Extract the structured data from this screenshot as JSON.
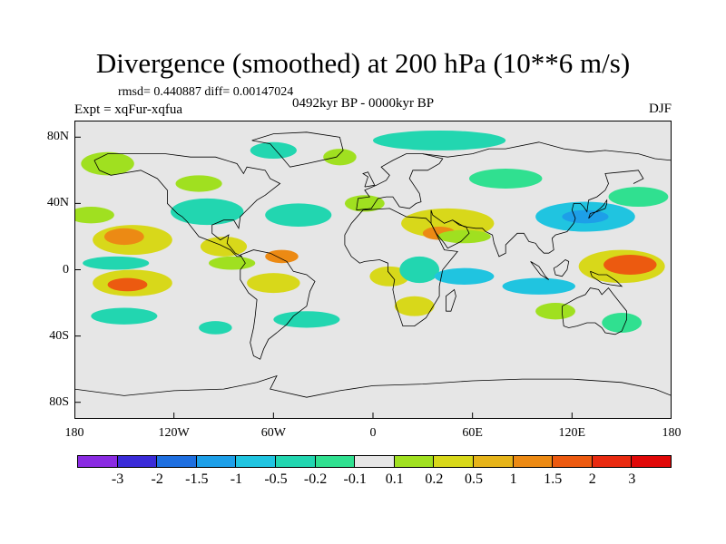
{
  "title": "Divergence (smoothed) at 200 hPa (10**6 m/s)",
  "stats": "rmsd= 0.440887  diff= 0.00147024",
  "experiment": "Expt = xqFur-xqfua",
  "period": "0492kyr BP - 0000kyr BP",
  "season": "DJF",
  "lat_labels": [
    "80N",
    "40N",
    "0",
    "40S",
    "80S"
  ],
  "lat_values": [
    80,
    40,
    0,
    -40,
    -80
  ],
  "lon_labels": [
    "180",
    "120W",
    "60W",
    "0",
    "60E",
    "120E",
    "180"
  ],
  "lon_values": [
    -180,
    -120,
    -60,
    0,
    60,
    120,
    180
  ],
  "colorbar": {
    "labels": [
      "-3",
      "-2",
      "-1.5",
      "-1",
      "-0.5",
      "-0.2",
      "-0.1",
      "0.1",
      "0.2",
      "0.5",
      "1",
      "1.5",
      "2",
      "3"
    ],
    "colors": [
      "#8a2be2",
      "#3a2bd8",
      "#1e6fe0",
      "#1d9fe8",
      "#20c4e0",
      "#22d6b0",
      "#30e090",
      "#e6e6e6",
      "#a0e020",
      "#d8d81a",
      "#e6b41a",
      "#ec8a14",
      "#ec5a10",
      "#e82a10",
      "#e00808"
    ]
  },
  "map_colors": {
    "background": "#e6e6e6",
    "coast": "#000000"
  },
  "field_blobs": [
    {
      "lon": -145,
      "lat": 18,
      "rx": 24,
      "ry": 9,
      "level": "0.5",
      "color": "#d8d81a"
    },
    {
      "lon": -150,
      "lat": 20,
      "rx": 12,
      "ry": 5,
      "level": "1",
      "color": "#ec8a14"
    },
    {
      "lon": -90,
      "lat": 14,
      "rx": 14,
      "ry": 6,
      "level": "0.5",
      "color": "#d8d81a"
    },
    {
      "lon": -145,
      "lat": -8,
      "rx": 24,
      "ry": 8,
      "level": "0.5",
      "color": "#d8d81a"
    },
    {
      "lon": -148,
      "lat": -9,
      "rx": 12,
      "ry": 4,
      "level": "1.5",
      "color": "#ec5a10"
    },
    {
      "lon": -85,
      "lat": 4,
      "rx": 14,
      "ry": 4,
      "level": "0.2",
      "color": "#a0e020"
    },
    {
      "lon": -60,
      "lat": -8,
      "rx": 16,
      "ry": 6,
      "level": "0.5",
      "color": "#d8d81a"
    },
    {
      "lon": -55,
      "lat": 8,
      "rx": 10,
      "ry": 4,
      "level": "1",
      "color": "#ec8a14"
    },
    {
      "lon": -170,
      "lat": 33,
      "rx": 14,
      "ry": 5,
      "level": "0.2",
      "color": "#a0e020"
    },
    {
      "lon": 45,
      "lat": 28,
      "rx": 28,
      "ry": 9,
      "level": "0.5",
      "color": "#d8d81a"
    },
    {
      "lon": 40,
      "lat": 22,
      "rx": 10,
      "ry": 4,
      "level": "1",
      "color": "#ec8a14"
    },
    {
      "lon": 10,
      "lat": -4,
      "rx": 12,
      "ry": 6,
      "level": "0.5",
      "color": "#d8d81a"
    },
    {
      "lon": 25,
      "lat": -22,
      "rx": 12,
      "ry": 6,
      "level": "0.5",
      "color": "#d8d81a"
    },
    {
      "lon": 55,
      "lat": 20,
      "rx": 16,
      "ry": 4,
      "level": "0.2",
      "color": "#a0e020"
    },
    {
      "lon": 150,
      "lat": 2,
      "rx": 26,
      "ry": 10,
      "level": "0.5",
      "color": "#d8d81a"
    },
    {
      "lon": 155,
      "lat": 3,
      "rx": 16,
      "ry": 6,
      "level": "1.5",
      "color": "#ec5a10"
    },
    {
      "lon": 110,
      "lat": -25,
      "rx": 12,
      "ry": 5,
      "level": "0.2",
      "color": "#a0e020"
    },
    {
      "lon": -160,
      "lat": 64,
      "rx": 16,
      "ry": 7,
      "level": "0.2",
      "color": "#a0e020"
    },
    {
      "lon": -20,
      "lat": 68,
      "rx": 10,
      "ry": 5,
      "level": "0.2",
      "color": "#a0e020"
    },
    {
      "lon": -105,
      "lat": 52,
      "rx": 14,
      "ry": 5,
      "level": "0.2",
      "color": "#a0e020"
    },
    {
      "lon": -5,
      "lat": 40,
      "rx": 12,
      "ry": 5,
      "level": "0.2",
      "color": "#a0e020"
    },
    {
      "lon": 128,
      "lat": 32,
      "rx": 30,
      "ry": 9,
      "level": "-0.5",
      "color": "#20c4e0"
    },
    {
      "lon": 128,
      "lat": 32,
      "rx": 14,
      "ry": 4,
      "level": "-1",
      "color": "#1d9fe8"
    },
    {
      "lon": 160,
      "lat": 44,
      "rx": 18,
      "ry": 6,
      "level": "-0.1",
      "color": "#30e090"
    },
    {
      "lon": -100,
      "lat": 35,
      "rx": 22,
      "ry": 8,
      "level": "-0.2",
      "color": "#22d6b0"
    },
    {
      "lon": -45,
      "lat": 33,
      "rx": 20,
      "ry": 7,
      "level": "-0.2",
      "color": "#22d6b0"
    },
    {
      "lon": -150,
      "lat": -28,
      "rx": 20,
      "ry": 5,
      "level": "-0.2",
      "color": "#22d6b0"
    },
    {
      "lon": -155,
      "lat": 4,
      "rx": 20,
      "ry": 4,
      "level": "-0.2",
      "color": "#22d6b0"
    },
    {
      "lon": 28,
      "lat": 0,
      "rx": 12,
      "ry": 8,
      "level": "-0.2",
      "color": "#22d6b0"
    },
    {
      "lon": 55,
      "lat": -4,
      "rx": 18,
      "ry": 5,
      "level": "-0.5",
      "color": "#20c4e0"
    },
    {
      "lon": 100,
      "lat": -10,
      "rx": 22,
      "ry": 5,
      "level": "-0.5",
      "color": "#20c4e0"
    },
    {
      "lon": 40,
      "lat": 78,
      "rx": 40,
      "ry": 6,
      "level": "-0.2",
      "color": "#22d6b0"
    },
    {
      "lon": -60,
      "lat": 72,
      "rx": 14,
      "ry": 5,
      "level": "-0.2",
      "color": "#22d6b0"
    },
    {
      "lon": 80,
      "lat": 55,
      "rx": 22,
      "ry": 6,
      "level": "-0.1",
      "color": "#30e090"
    },
    {
      "lon": -40,
      "lat": -30,
      "rx": 20,
      "ry": 5,
      "level": "-0.2",
      "color": "#22d6b0"
    },
    {
      "lon": 150,
      "lat": -32,
      "rx": 12,
      "ry": 6,
      "level": "-0.1",
      "color": "#30e090"
    },
    {
      "lon": -95,
      "lat": -35,
      "rx": 10,
      "ry": 4,
      "level": "-0.2",
      "color": "#22d6b0"
    }
  ],
  "coastlines": [
    [
      [
        -168,
        66
      ],
      [
        -160,
        70
      ],
      [
        -140,
        70
      ],
      [
        -125,
        70
      ],
      [
        -110,
        68
      ],
      [
        -95,
        68
      ],
      [
        -82,
        64
      ],
      [
        -78,
        58
      ],
      [
        -76,
        62
      ],
      [
        -65,
        60
      ],
      [
        -62,
        55
      ],
      [
        -56,
        52
      ],
      [
        -65,
        45
      ],
      [
        -70,
        42
      ],
      [
        -75,
        37
      ],
      [
        -80,
        32
      ],
      [
        -81,
        25
      ],
      [
        -84,
        30
      ],
      [
        -90,
        30
      ],
      [
        -97,
        27
      ],
      [
        -97,
        22
      ],
      [
        -92,
        18
      ],
      [
        -87,
        21
      ],
      [
        -88,
        16
      ],
      [
        -83,
        10
      ],
      [
        -79,
        8
      ],
      [
        -82,
        8
      ],
      [
        -86,
        12
      ],
      [
        -92,
        15
      ],
      [
        -105,
        20
      ],
      [
        -112,
        29
      ],
      [
        -115,
        32
      ],
      [
        -118,
        34
      ],
      [
        -124,
        40
      ],
      [
        -124,
        48
      ],
      [
        -130,
        55
      ],
      [
        -140,
        60
      ],
      [
        -152,
        58
      ],
      [
        -158,
        57
      ],
      [
        -165,
        60
      ],
      [
        -168,
        66
      ]
    ],
    [
      [
        -80,
        9
      ],
      [
        -72,
        12
      ],
      [
        -62,
        10
      ],
      [
        -52,
        5
      ],
      [
        -48,
        -1
      ],
      [
        -40,
        -3
      ],
      [
        -35,
        -7
      ],
      [
        -38,
        -13
      ],
      [
        -40,
        -22
      ],
      [
        -48,
        -28
      ],
      [
        -52,
        -33
      ],
      [
        -58,
        -38
      ],
      [
        -63,
        -42
      ],
      [
        -66,
        -48
      ],
      [
        -68,
        -54
      ],
      [
        -72,
        -52
      ],
      [
        -74,
        -44
      ],
      [
        -72,
        -35
      ],
      [
        -71,
        -28
      ],
      [
        -70,
        -18
      ],
      [
        -75,
        -14
      ],
      [
        -80,
        -6
      ],
      [
        -80,
        0
      ],
      [
        -77,
        4
      ],
      [
        -80,
        9
      ]
    ],
    [
      [
        -73,
        78
      ],
      [
        -60,
        82
      ],
      [
        -40,
        83
      ],
      [
        -20,
        80
      ],
      [
        -18,
        72
      ],
      [
        -22,
        68
      ],
      [
        -40,
        64
      ],
      [
        -50,
        62
      ],
      [
        -55,
        68
      ],
      [
        -62,
        76
      ],
      [
        -73,
        78
      ]
    ],
    [
      [
        -17,
        15
      ],
      [
        -17,
        21
      ],
      [
        -13,
        28
      ],
      [
        -6,
        36
      ],
      [
        10,
        37
      ],
      [
        20,
        32
      ],
      [
        32,
        31
      ],
      [
        35,
        28
      ],
      [
        43,
        12
      ],
      [
        51,
        11
      ],
      [
        42,
        0
      ],
      [
        40,
        -10
      ],
      [
        40,
        -16
      ],
      [
        35,
        -24
      ],
      [
        32,
        -29
      ],
      [
        25,
        -34
      ],
      [
        18,
        -34
      ],
      [
        14,
        -22
      ],
      [
        12,
        -12
      ],
      [
        13,
        -6
      ],
      [
        9,
        -1
      ],
      [
        9,
        4
      ],
      [
        4,
        6
      ],
      [
        -5,
        5
      ],
      [
        -8,
        4
      ],
      [
        -13,
        8
      ],
      [
        -17,
        15
      ]
    ],
    [
      [
        -10,
        36
      ],
      [
        -9,
        43
      ],
      [
        -2,
        44
      ],
      [
        -5,
        48
      ],
      [
        2,
        51
      ],
      [
        8,
        54
      ],
      [
        10,
        57
      ],
      [
        5,
        62
      ],
      [
        12,
        66
      ],
      [
        20,
        70
      ],
      [
        30,
        70
      ],
      [
        42,
        67
      ],
      [
        40,
        64
      ],
      [
        33,
        60
      ],
      [
        24,
        60
      ],
      [
        22,
        55
      ],
      [
        28,
        46
      ],
      [
        29,
        41
      ],
      [
        26,
        40
      ],
      [
        22,
        37
      ],
      [
        16,
        38
      ],
      [
        12,
        44
      ],
      [
        8,
        44
      ],
      [
        3,
        43
      ],
      [
        -1,
        37
      ],
      [
        -10,
        36
      ]
    ],
    [
      [
        30,
        70
      ],
      [
        45,
        68
      ],
      [
        60,
        70
      ],
      [
        70,
        73
      ],
      [
        80,
        73
      ],
      [
        100,
        77
      ],
      [
        115,
        73
      ],
      [
        130,
        71
      ],
      [
        140,
        72
      ],
      [
        160,
        70
      ],
      [
        170,
        67
      ],
      [
        180,
        66
      ]
    ],
    [
      [
        35,
        36
      ],
      [
        36,
        33
      ],
      [
        43,
        28
      ],
      [
        48,
        30
      ],
      [
        52,
        27
      ],
      [
        56,
        26
      ],
      [
        58,
        22
      ],
      [
        53,
        17
      ],
      [
        45,
        13
      ],
      [
        43,
        16
      ],
      [
        38,
        22
      ],
      [
        35,
        28
      ],
      [
        35,
        36
      ]
    ],
    [
      [
        48,
        30
      ],
      [
        55,
        26
      ],
      [
        62,
        25
      ],
      [
        66,
        25
      ],
      [
        68,
        23
      ],
      [
        72,
        21
      ],
      [
        73,
        16
      ],
      [
        76,
        8
      ],
      [
        80,
        10
      ],
      [
        80,
        15
      ],
      [
        87,
        22
      ],
      [
        91,
        22
      ],
      [
        94,
        17
      ],
      [
        98,
        16
      ],
      [
        100,
        13
      ],
      [
        103,
        10
      ],
      [
        106,
        10
      ],
      [
        109,
        12
      ],
      [
        108,
        19
      ],
      [
        110,
        21
      ],
      [
        117,
        23
      ],
      [
        121,
        28
      ],
      [
        122,
        31
      ],
      [
        120,
        36
      ],
      [
        121,
        40
      ],
      [
        125,
        40
      ],
      [
        127,
        38
      ],
      [
        129,
        35
      ],
      [
        130,
        42
      ],
      [
        135,
        44
      ],
      [
        140,
        48
      ],
      [
        142,
        52
      ],
      [
        140,
        58
      ],
      [
        150,
        59
      ],
      [
        160,
        60
      ],
      [
        163,
        55
      ],
      [
        157,
        52
      ]
    ],
    [
      [
        114,
        -22
      ],
      [
        114,
        -26
      ],
      [
        115,
        -34
      ],
      [
        118,
        -35
      ],
      [
        123,
        -34
      ],
      [
        129,
        -32
      ],
      [
        134,
        -32
      ],
      [
        138,
        -35
      ],
      [
        140,
        -38
      ],
      [
        146,
        -39
      ],
      [
        150,
        -37
      ],
      [
        153,
        -30
      ],
      [
        153,
        -25
      ],
      [
        149,
        -20
      ],
      [
        145,
        -15
      ],
      [
        142,
        -11
      ],
      [
        138,
        -15
      ],
      [
        136,
        -12
      ],
      [
        131,
        -11
      ],
      [
        128,
        -15
      ],
      [
        123,
        -17
      ],
      [
        114,
        -22
      ]
    ],
    [
      [
        130,
        31
      ],
      [
        131,
        34
      ],
      [
        135,
        35
      ],
      [
        140,
        37
      ],
      [
        141,
        40
      ],
      [
        141,
        42
      ],
      [
        139,
        39
      ],
      [
        137,
        37
      ],
      [
        133,
        34
      ],
      [
        130,
        31
      ]
    ],
    [
      [
        95,
        5
      ],
      [
        100,
        2
      ],
      [
        104,
        -4
      ],
      [
        106,
        -6
      ],
      [
        101,
        -3
      ],
      [
        95,
        5
      ]
    ],
    [
      [
        109,
        1
      ],
      [
        110,
        -3
      ],
      [
        114,
        -4
      ],
      [
        117,
        0
      ],
      [
        118,
        5
      ],
      [
        116,
        6
      ],
      [
        111,
        2
      ],
      [
        109,
        1
      ]
    ],
    [
      [
        131,
        -1
      ],
      [
        136,
        -3
      ],
      [
        141,
        -3
      ],
      [
        147,
        -7
      ],
      [
        150,
        -10
      ],
      [
        143,
        -9
      ],
      [
        138,
        -8
      ],
      [
        132,
        -4
      ],
      [
        131,
        -1
      ]
    ],
    [
      [
        44,
        -25
      ],
      [
        47,
        -25
      ],
      [
        50,
        -16
      ],
      [
        49,
        -12
      ],
      [
        44,
        -16
      ],
      [
        44,
        -25
      ]
    ],
    [
      [
        -5,
        50
      ],
      [
        -3,
        56
      ],
      [
        -6,
        58
      ],
      [
        -3,
        59
      ],
      [
        0,
        53
      ],
      [
        1,
        51
      ],
      [
        -5,
        50
      ]
    ],
    [
      [
        -180,
        -72
      ],
      [
        -150,
        -76
      ],
      [
        -120,
        -73
      ],
      [
        -90,
        -72
      ],
      [
        -70,
        -68
      ],
      [
        -58,
        -64
      ],
      [
        -62,
        -72
      ],
      [
        -40,
        -77
      ],
      [
        -20,
        -73
      ],
      [
        0,
        -70
      ],
      [
        30,
        -69
      ],
      [
        60,
        -67
      ],
      [
        90,
        -66
      ],
      [
        120,
        -66
      ],
      [
        150,
        -68
      ],
      [
        170,
        -72
      ],
      [
        180,
        -76
      ]
    ]
  ]
}
